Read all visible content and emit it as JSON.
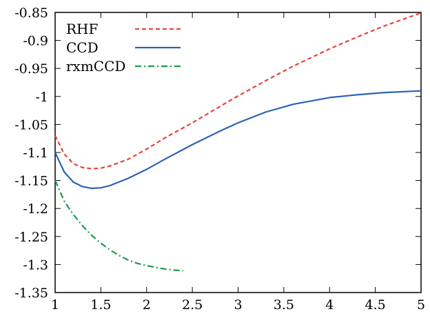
{
  "chart_data": {
    "type": "line",
    "title": "",
    "xlabel": "",
    "ylabel": "",
    "xlim": [
      1,
      5
    ],
    "ylim": [
      -1.35,
      -0.85
    ],
    "xticks": [
      1,
      1.5,
      2,
      2.5,
      3,
      3.5,
      4,
      4.5,
      5
    ],
    "xtick_labels": [
      "1",
      "1.5",
      "2",
      "2.5",
      "3",
      "3.5",
      "4",
      "4.5",
      "5"
    ],
    "yticks": [
      -1.35,
      -1.3,
      -1.25,
      -1.2,
      -1.15,
      -1.1,
      -1.05,
      -1,
      -0.95,
      -0.9,
      -0.85
    ],
    "ytick_labels": [
      "-1.35",
      "-1.3",
      "-1.25",
      "-1.2",
      "-1.15",
      "-1.1",
      "-1.05",
      "-1",
      "-0.95",
      "-0.9",
      "-0.85"
    ],
    "grid": false,
    "legend_position": "top-left",
    "series": [
      {
        "name": "RHF",
        "color": "#e8423a",
        "dash": "dashed",
        "x": [
          1.0,
          1.1,
          1.2,
          1.3,
          1.4,
          1.5,
          1.6,
          1.8,
          2.0,
          2.2,
          2.5,
          2.8,
          3.0,
          3.3,
          3.6,
          4.0,
          4.3,
          4.6,
          5.0
        ],
        "y": [
          -1.07,
          -1.103,
          -1.12,
          -1.127,
          -1.129,
          -1.128,
          -1.124,
          -1.112,
          -1.094,
          -1.074,
          -1.047,
          -1.018,
          -0.999,
          -0.972,
          -0.946,
          -0.915,
          -0.894,
          -0.874,
          -0.851
        ]
      },
      {
        "name": "CCD",
        "color": "#2a62b8",
        "dash": "solid",
        "x": [
          1.0,
          1.1,
          1.2,
          1.3,
          1.4,
          1.5,
          1.6,
          1.8,
          2.0,
          2.2,
          2.5,
          2.8,
          3.0,
          3.3,
          3.6,
          4.0,
          4.3,
          4.6,
          5.0
        ],
        "y": [
          -1.1,
          -1.135,
          -1.153,
          -1.161,
          -1.164,
          -1.163,
          -1.159,
          -1.146,
          -1.13,
          -1.112,
          -1.086,
          -1.062,
          -1.047,
          -1.028,
          -1.014,
          -1.002,
          -0.997,
          -0.993,
          -0.99
        ]
      },
      {
        "name": "rxmCCD",
        "color": "#1a9a4e",
        "dash": "dashdot",
        "x": [
          1.0,
          1.1,
          1.2,
          1.3,
          1.4,
          1.5,
          1.6,
          1.7,
          1.8,
          1.9,
          2.0,
          2.1,
          2.2,
          2.3,
          2.4
        ],
        "y": [
          -1.15,
          -1.187,
          -1.211,
          -1.231,
          -1.248,
          -1.262,
          -1.274,
          -1.284,
          -1.292,
          -1.298,
          -1.302,
          -1.305,
          -1.308,
          -1.31,
          -1.311
        ]
      }
    ]
  }
}
